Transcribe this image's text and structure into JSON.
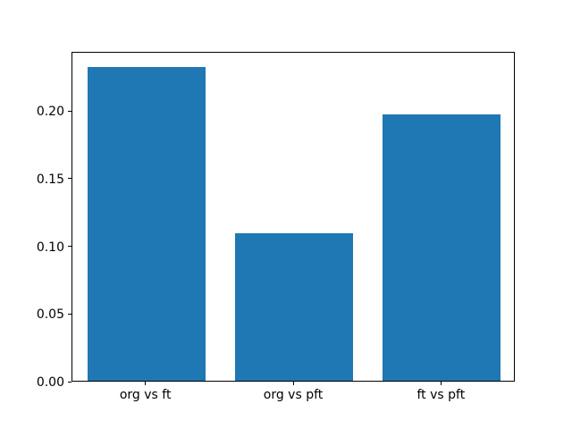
{
  "chart_data": {
    "type": "bar",
    "categories": [
      "org vs ft",
      "org vs pft",
      "ft vs pft"
    ],
    "values": [
      0.232,
      0.109,
      0.197
    ],
    "title": "",
    "xlabel": "",
    "ylabel": "",
    "ylim": [
      0,
      0.2436
    ],
    "yticks": [
      0.0,
      0.05,
      0.1,
      0.15,
      0.2
    ],
    "ytick_labels": [
      "0.00",
      "0.05",
      "0.10",
      "0.15",
      "0.20"
    ],
    "bar_color": "#1f77b4",
    "grid": false,
    "legend": "none",
    "background_color": "#ffffff",
    "spine_color": "#000000"
  }
}
